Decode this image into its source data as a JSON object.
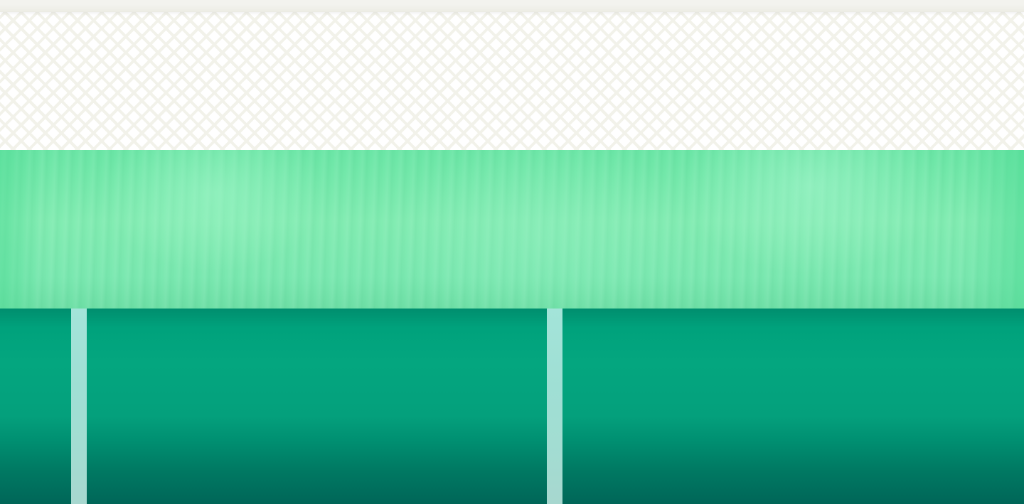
{
  "colors": {
    "top_bar": "#f3f3ee",
    "lattice_background": "#ffffff",
    "lattice_lines": "#f2f2ea",
    "grass_band": "#7ae8b0",
    "teal_section_top": "#00a27c",
    "teal_section_bottom": "#006658",
    "pillar": "#a3e4d9"
  },
  "regions": [
    "top-bar",
    "lattice-band",
    "grass-band",
    "teal-section"
  ]
}
